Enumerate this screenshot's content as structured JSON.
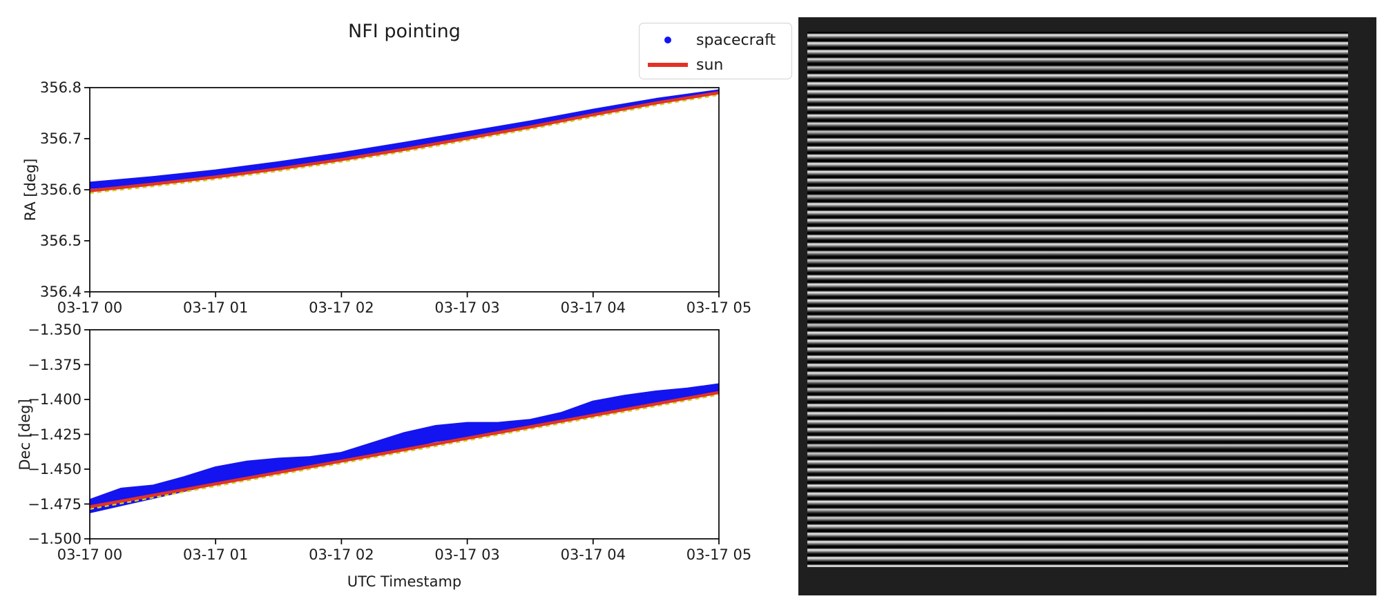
{
  "figure": {
    "title": "NFI pointing",
    "legend": [
      {
        "label": "spacecraft",
        "marker": "dot",
        "color": "#1414f0"
      },
      {
        "label": "sun",
        "marker": "line",
        "color": "#e33225"
      }
    ]
  },
  "colors": {
    "spacecraft_blue": "#1414f0",
    "sun_red": "#e33225",
    "sun_underlay_yellow": "#c9d32b",
    "axis_black": "#000000",
    "panel_background": "#1f1f1f",
    "stripe_bright": "#efefef",
    "stripe_dark": "#000000",
    "figure_background": "#ffffff"
  },
  "chart_data": [
    {
      "type": "scatter",
      "title": "NFI pointing",
      "ylabel": "RA [deg]",
      "xlabel": "",
      "ylim": [
        356.4,
        356.8
      ],
      "xlim_hours": [
        0,
        5
      ],
      "grid": false,
      "legend_position": "upper right (outside, above axes)",
      "yticks": [
        {
          "v": 356.8,
          "label": "356.8"
        },
        {
          "v": 356.7,
          "label": "356.7"
        },
        {
          "v": 356.6,
          "label": "356.6"
        },
        {
          "v": 356.5,
          "label": "356.5"
        },
        {
          "v": 356.4,
          "label": "356.4"
        }
      ],
      "xticks": [
        {
          "v": 0,
          "label": "03-17 00"
        },
        {
          "v": 1,
          "label": "03-17 01"
        },
        {
          "v": 2,
          "label": "03-17 02"
        },
        {
          "v": 3,
          "label": "03-17 03"
        },
        {
          "v": 4,
          "label": "03-17 04"
        },
        {
          "v": 5,
          "label": "03-17 05"
        }
      ],
      "series": [
        {
          "name": "spacecraft",
          "style": "scatter-band",
          "x": [
            0,
            0.5,
            1,
            1.5,
            2,
            2.5,
            3,
            3.5,
            4,
            4.5,
            5
          ],
          "top": [
            356.614,
            356.625,
            356.638,
            356.654,
            356.672,
            356.692,
            356.713,
            356.734,
            356.757,
            356.778,
            356.795
          ],
          "bottom": [
            356.603,
            356.614,
            356.628,
            356.644,
            356.662,
            356.682,
            356.704,
            356.726,
            356.749,
            356.772,
            356.789
          ]
        },
        {
          "name": "sun",
          "style": "line",
          "x": [
            0,
            0.5,
            1,
            1.5,
            2,
            2.5,
            3,
            3.5,
            4,
            4.5,
            5
          ],
          "y": [
            356.598,
            356.611,
            356.625,
            356.641,
            356.659,
            356.679,
            356.701,
            356.723,
            356.747,
            356.77,
            356.79
          ]
        }
      ]
    },
    {
      "type": "scatter",
      "title": "",
      "ylabel": "Dec [deg]",
      "xlabel": "UTC Timestamp",
      "ylim": [
        -1.5,
        -1.35
      ],
      "xlim_hours": [
        0,
        5
      ],
      "grid": false,
      "yticks": [
        {
          "v": -1.35,
          "label": "−1.350"
        },
        {
          "v": -1.375,
          "label": "−1.375"
        },
        {
          "v": -1.4,
          "label": "−1.400"
        },
        {
          "v": -1.425,
          "label": "−1.425"
        },
        {
          "v": -1.45,
          "label": "−1.450"
        },
        {
          "v": -1.475,
          "label": "−1.475"
        },
        {
          "v": -1.5,
          "label": "−1.500"
        }
      ],
      "xticks": [
        {
          "v": 0,
          "label": "03-17 00"
        },
        {
          "v": 1,
          "label": "03-17 01"
        },
        {
          "v": 2,
          "label": "03-17 02"
        },
        {
          "v": 3,
          "label": "03-17 03"
        },
        {
          "v": 4,
          "label": "03-17 04"
        },
        {
          "v": 5,
          "label": "03-17 05"
        }
      ],
      "series": [
        {
          "name": "spacecraft",
          "style": "scatter-band",
          "x": [
            0,
            0.25,
            0.5,
            0.75,
            1,
            1.25,
            1.5,
            1.75,
            2,
            2.25,
            2.5,
            2.75,
            3,
            3.25,
            3.5,
            3.75,
            4,
            4.25,
            4.5,
            4.75,
            5
          ],
          "top": [
            -1.472,
            -1.4639,
            -1.4618,
            -1.4557,
            -1.4486,
            -1.4445,
            -1.4424,
            -1.4413,
            -1.4382,
            -1.4311,
            -1.424,
            -1.4189,
            -1.4168,
            -1.4167,
            -1.4146,
            -1.4095,
            -1.4014,
            -1.3973,
            -1.3942,
            -1.3921,
            -1.389
          ],
          "bottom": [
            -1.481,
            -1.4759,
            -1.4708,
            -1.4657,
            -1.4606,
            -1.4555,
            -1.4514,
            -1.4483,
            -1.4442,
            -1.4391,
            -1.435,
            -1.4299,
            -1.4268,
            -1.4237,
            -1.4196,
            -1.4155,
            -1.4104,
            -1.4063,
            -1.4022,
            -1.3981,
            -1.394
          ]
        },
        {
          "name": "sun",
          "style": "line",
          "x": [
            0,
            0.25,
            0.5,
            0.75,
            1,
            1.25,
            1.5,
            1.75,
            2,
            2.25,
            2.5,
            2.75,
            3,
            3.25,
            3.5,
            3.75,
            4,
            4.25,
            4.5,
            4.75,
            5
          ],
          "y": [
            -1.477,
            -1.4729,
            -1.4688,
            -1.4647,
            -1.4606,
            -1.4565,
            -1.4524,
            -1.4483,
            -1.4442,
            -1.4401,
            -1.436,
            -1.4319,
            -1.4278,
            -1.4237,
            -1.4196,
            -1.4155,
            -1.4114,
            -1.4073,
            -1.4032,
            -1.3991,
            -1.395
          ]
        }
      ]
    }
  ],
  "detector_panel": {
    "stripe_count": 66,
    "stripe_orientation": "horizontal"
  }
}
